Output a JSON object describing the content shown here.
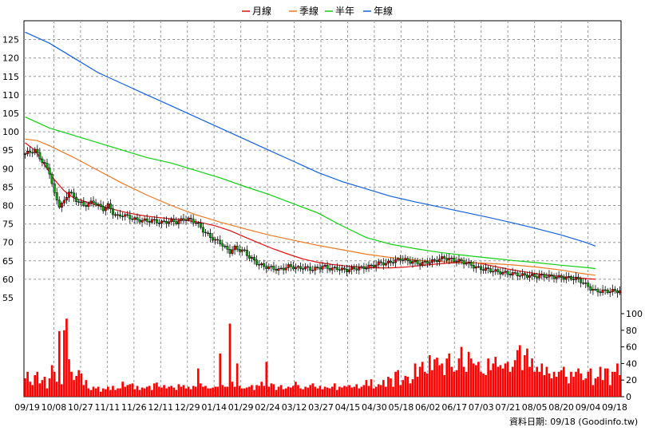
{
  "chart_data": {
    "type": "candlestick-with-volume",
    "legend": [
      {
        "name": "月線",
        "color": "#e01010"
      },
      {
        "name": "季線",
        "color": "#f07820"
      },
      {
        "name": "半年",
        "color": "#10d010"
      },
      {
        "name": "年線",
        "color": "#1060e0"
      }
    ],
    "price_axis": {
      "ylim": [
        55,
        127.5
      ],
      "ticks": [
        55,
        60,
        65,
        70,
        75,
        80,
        85,
        90,
        95,
        100,
        105,
        110,
        115,
        120,
        125
      ]
    },
    "volume_axis": {
      "ylim": [
        0,
        110
      ],
      "ticks": [
        0,
        20,
        40,
        60,
        80,
        100
      ]
    },
    "x_ticks": [
      "09/19",
      "10/08",
      "10/27",
      "11/11",
      "11/26",
      "12/11",
      "12/29",
      "01/14",
      "01/29",
      "02/24",
      "03/12",
      "03/27",
      "04/15",
      "04/30",
      "05/18",
      "06/02",
      "06/17",
      "07/03",
      "07/21",
      "08/05",
      "08/20",
      "09/04",
      "09/18"
    ],
    "grid": true,
    "lines": [
      {
        "name": "月線",
        "points": [
          [
            0,
            97
          ],
          [
            4,
            95
          ],
          [
            8,
            91
          ],
          [
            12,
            87
          ],
          [
            16,
            84
          ],
          [
            20,
            82
          ],
          [
            25,
            81
          ],
          [
            30,
            80
          ],
          [
            36,
            79
          ],
          [
            42,
            78
          ],
          [
            48,
            77.3
          ],
          [
            54,
            76.8
          ],
          [
            60,
            76.4
          ],
          [
            66,
            76
          ],
          [
            72,
            75.4
          ],
          [
            78,
            74.5
          ],
          [
            84,
            73.2
          ],
          [
            90,
            71.5
          ],
          [
            96,
            69.8
          ],
          [
            102,
            68.2
          ],
          [
            108,
            66.8
          ],
          [
            114,
            65.5
          ],
          [
            120,
            64.6
          ],
          [
            126,
            64
          ],
          [
            132,
            63.6
          ],
          [
            138,
            63.3
          ],
          [
            144,
            63.1
          ],
          [
            150,
            63.1
          ],
          [
            156,
            63.3
          ],
          [
            162,
            63.7
          ],
          [
            168,
            64.1
          ],
          [
            174,
            64.4
          ],
          [
            180,
            64.6
          ],
          [
            186,
            64.4
          ],
          [
            192,
            63.6
          ],
          [
            198,
            62.8
          ],
          [
            204,
            62.1
          ],
          [
            210,
            61.5
          ],
          [
            216,
            61
          ],
          [
            222,
            60.6
          ],
          [
            228,
            60.3
          ],
          [
            234,
            60
          ]
        ]
      },
      {
        "name": "季線",
        "points": [
          [
            0,
            98
          ],
          [
            5,
            97.6
          ],
          [
            10,
            96.2
          ],
          [
            20,
            93
          ],
          [
            30,
            89.5
          ],
          [
            40,
            86
          ],
          [
            50,
            82.8
          ],
          [
            60,
            80
          ],
          [
            70,
            77.5
          ],
          [
            80,
            75.5
          ],
          [
            90,
            73.7
          ],
          [
            100,
            72
          ],
          [
            110,
            70.6
          ],
          [
            120,
            69.2
          ],
          [
            130,
            68
          ],
          [
            140,
            66.8
          ],
          [
            150,
            65.9
          ],
          [
            160,
            65.2
          ],
          [
            170,
            64.8
          ],
          [
            180,
            64.6
          ],
          [
            190,
            64.3
          ],
          [
            200,
            63.9
          ],
          [
            210,
            63.3
          ],
          [
            220,
            62.5
          ],
          [
            228,
            61.6
          ],
          [
            234,
            61.1
          ]
        ]
      },
      {
        "name": "半年",
        "points": [
          [
            0,
            104
          ],
          [
            10,
            101
          ],
          [
            20,
            99
          ],
          [
            30,
            97
          ],
          [
            40,
            95
          ],
          [
            50,
            93
          ],
          [
            60,
            91.5
          ],
          [
            70,
            89.5
          ],
          [
            80,
            87.5
          ],
          [
            90,
            85.2
          ],
          [
            100,
            83
          ],
          [
            110,
            80.5
          ],
          [
            120,
            78
          ],
          [
            130,
            74.5
          ],
          [
            140,
            71.3
          ],
          [
            150,
            69.5
          ],
          [
            160,
            68.3
          ],
          [
            170,
            67.3
          ],
          [
            180,
            66.5
          ],
          [
            190,
            65.8
          ],
          [
            200,
            65.1
          ],
          [
            210,
            64.5
          ],
          [
            220,
            63.8
          ],
          [
            230,
            63.2
          ],
          [
            234,
            62.9
          ]
        ]
      },
      {
        "name": "年線",
        "points": [
          [
            0,
            127
          ],
          [
            10,
            124
          ],
          [
            20,
            120
          ],
          [
            30,
            116
          ],
          [
            40,
            113
          ],
          [
            50,
            110
          ],
          [
            60,
            107
          ],
          [
            70,
            104
          ],
          [
            80,
            101
          ],
          [
            90,
            98
          ],
          [
            100,
            95
          ],
          [
            110,
            92
          ],
          [
            120,
            89
          ],
          [
            130,
            86.5
          ],
          [
            140,
            84.5
          ],
          [
            150,
            82.5
          ],
          [
            160,
            81
          ],
          [
            170,
            79.6
          ],
          [
            180,
            78.2
          ],
          [
            190,
            76.8
          ],
          [
            200,
            75.3
          ],
          [
            210,
            73.7
          ],
          [
            220,
            72
          ],
          [
            230,
            70
          ],
          [
            234,
            69
          ]
        ]
      }
    ],
    "price_path": [
      [
        0,
        94
      ],
      [
        4,
        95
      ],
      [
        6,
        93
      ],
      [
        8,
        91
      ],
      [
        10,
        89
      ],
      [
        12,
        83
      ],
      [
        14,
        80
      ],
      [
        16,
        81
      ],
      [
        18,
        84
      ],
      [
        20,
        82
      ],
      [
        22,
        81
      ],
      [
        24,
        80
      ],
      [
        26,
        80.5
      ],
      [
        28,
        81
      ],
      [
        30,
        80
      ],
      [
        32,
        79
      ],
      [
        34,
        80
      ],
      [
        36,
        78
      ],
      [
        38,
        77
      ],
      [
        40,
        77.5
      ],
      [
        42,
        77
      ],
      [
        44,
        76.5
      ],
      [
        46,
        76
      ],
      [
        48,
        76
      ],
      [
        50,
        75.8
      ],
      [
        52,
        76
      ],
      [
        54,
        75.6
      ],
      [
        56,
        75.4
      ],
      [
        58,
        75.6
      ],
      [
        60,
        75.8
      ],
      [
        62,
        75.5
      ],
      [
        64,
        76
      ],
      [
        66,
        76.5
      ],
      [
        68,
        76
      ],
      [
        70,
        75.5
      ],
      [
        72,
        74
      ],
      [
        74,
        72.5
      ],
      [
        76,
        71.5
      ],
      [
        78,
        70.5
      ],
      [
        80,
        70
      ],
      [
        82,
        68.5
      ],
      [
        84,
        67.5
      ],
      [
        86,
        68.5
      ],
      [
        88,
        68
      ],
      [
        90,
        67.5
      ],
      [
        92,
        66
      ],
      [
        94,
        65
      ],
      [
        96,
        64
      ],
      [
        98,
        63.5
      ],
      [
        100,
        63.2
      ],
      [
        102,
        63
      ],
      [
        104,
        62.5
      ],
      [
        106,
        63
      ],
      [
        108,
        63.5
      ],
      [
        110,
        63.3
      ],
      [
        112,
        63
      ],
      [
        114,
        63.2
      ],
      [
        116,
        63
      ],
      [
        118,
        62.7
      ],
      [
        120,
        63
      ],
      [
        122,
        63.5
      ],
      [
        124,
        63.1
      ],
      [
        126,
        62.8
      ],
      [
        128,
        63
      ],
      [
        130,
        62.6
      ],
      [
        132,
        62.5
      ],
      [
        134,
        62.8
      ],
      [
        136,
        63
      ],
      [
        138,
        63
      ],
      [
        140,
        63.3
      ],
      [
        142,
        63.6
      ],
      [
        144,
        64
      ],
      [
        146,
        64.5
      ],
      [
        148,
        64.2
      ],
      [
        150,
        64.8
      ],
      [
        152,
        65
      ],
      [
        154,
        65.6
      ],
      [
        156,
        65.2
      ],
      [
        158,
        64.8
      ],
      [
        160,
        64.6
      ],
      [
        162,
        64.3
      ],
      [
        164,
        64.5
      ],
      [
        166,
        64.8
      ],
      [
        168,
        65
      ],
      [
        170,
        65.5
      ],
      [
        172,
        65.8
      ],
      [
        174,
        65.5
      ],
      [
        176,
        65.2
      ],
      [
        178,
        65
      ],
      [
        180,
        64.6
      ],
      [
        182,
        64.2
      ],
      [
        184,
        63.5
      ],
      [
        186,
        63
      ],
      [
        188,
        62.8
      ],
      [
        190,
        62.6
      ],
      [
        192,
        62.3
      ],
      [
        194,
        62
      ],
      [
        196,
        61.8
      ],
      [
        198,
        61.6
      ],
      [
        200,
        61.5
      ],
      [
        202,
        61.3
      ],
      [
        204,
        61.1
      ],
      [
        206,
        61
      ],
      [
        208,
        60.9
      ],
      [
        210,
        60.8
      ],
      [
        212,
        61
      ],
      [
        214,
        60.9
      ],
      [
        216,
        60.7
      ],
      [
        218,
        60.6
      ],
      [
        220,
        60.5
      ],
      [
        222,
        60.4
      ],
      [
        224,
        60.3
      ],
      [
        226,
        60.2
      ],
      [
        228,
        59.5
      ],
      [
        230,
        58.5
      ],
      [
        232,
        57.5
      ],
      [
        234,
        56.8
      ]
    ],
    "volume": [
      22,
      30,
      18,
      14,
      26,
      30,
      16,
      20,
      24,
      10,
      22,
      38,
      30,
      18,
      79,
      15,
      80,
      94,
      45,
      30,
      20,
      25,
      32,
      28,
      14,
      20,
      10,
      8,
      12,
      10,
      12,
      6,
      10,
      9,
      12,
      8,
      13,
      8,
      10,
      10,
      18,
      12,
      14,
      15,
      16,
      9,
      13,
      8,
      11,
      10,
      12,
      13,
      8,
      16,
      17,
      12,
      11,
      14,
      10,
      12,
      13,
      11,
      8,
      15,
      12,
      14,
      10,
      12,
      9,
      13,
      12,
      34,
      16,
      12,
      13,
      10,
      10,
      11,
      12,
      12,
      52,
      14,
      12,
      12,
      88,
      18,
      12,
      40,
      13,
      10,
      10,
      11,
      12,
      14,
      8,
      14,
      13,
      18,
      13,
      42,
      12,
      16,
      15,
      8,
      12,
      14,
      9,
      10,
      12,
      11,
      13,
      18,
      14,
      10,
      9,
      12,
      11,
      14,
      16,
      12,
      10,
      13,
      9,
      12,
      11,
      10,
      12,
      16,
      8,
      12,
      11,
      13,
      12,
      14,
      11,
      12,
      15,
      10,
      12,
      14,
      20,
      13,
      21,
      10,
      12,
      15,
      14,
      20,
      12,
      24,
      22,
      12,
      30,
      32,
      14,
      20,
      25,
      24,
      16,
      21,
      40,
      24,
      36,
      42,
      30,
      28,
      50,
      32,
      45,
      47,
      38,
      40,
      26,
      46,
      52,
      36,
      30,
      32,
      46,
      60,
      36,
      30,
      54,
      46,
      40,
      38,
      42,
      30,
      28,
      26,
      46,
      32,
      40,
      48,
      36,
      38,
      34,
      40,
      42,
      30,
      36,
      44,
      56,
      62,
      32,
      50,
      58,
      36,
      46,
      30,
      36,
      30,
      40,
      26,
      36,
      28,
      22,
      30,
      24,
      30,
      32,
      36,
      24,
      16,
      30,
      24,
      30,
      34,
      28,
      20,
      22,
      30,
      34,
      14,
      22,
      24,
      36,
      20,
      34,
      34,
      14,
      30,
      30,
      40,
      26
    ],
    "credit": "資料日期: 09/18  (Goodinfo.tw)"
  }
}
